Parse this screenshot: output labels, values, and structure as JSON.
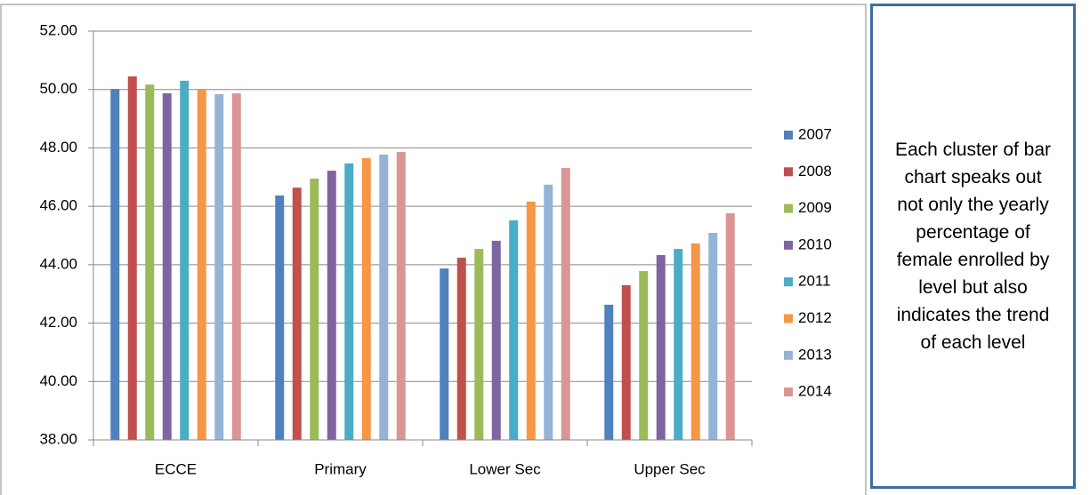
{
  "chart_data": {
    "type": "bar",
    "categories": [
      "ECCE",
      "Primary",
      "Lower Sec",
      "Upper Sec"
    ],
    "series": [
      {
        "name": "2007",
        "color": "#4f81bd",
        "values": [
          50.02,
          46.37,
          43.87,
          42.63
        ]
      },
      {
        "name": "2008",
        "color": "#c0504d",
        "values": [
          50.45,
          46.64,
          44.24,
          43.3
        ]
      },
      {
        "name": "2009",
        "color": "#9bbb59",
        "values": [
          50.17,
          46.95,
          44.54,
          43.78
        ]
      },
      {
        "name": "2010",
        "color": "#8064a2",
        "values": [
          49.87,
          47.22,
          44.82,
          44.33
        ]
      },
      {
        "name": "2011",
        "color": "#4bacc6",
        "values": [
          50.3,
          47.47,
          45.52,
          44.54
        ]
      },
      {
        "name": "2012",
        "color": "#f79646",
        "values": [
          49.99,
          47.65,
          46.16,
          44.73
        ]
      },
      {
        "name": "2013",
        "color": "#95b3d7",
        "values": [
          49.84,
          47.77,
          46.74,
          45.09
        ]
      },
      {
        "name": "2014",
        "color": "#d99694",
        "values": [
          49.87,
          47.86,
          47.31,
          45.76
        ]
      }
    ],
    "ylim": [
      38,
      52
    ],
    "yticks": [
      {
        "value": 38,
        "label": "38.00"
      },
      {
        "value": 40,
        "label": "40.00"
      },
      {
        "value": 42,
        "label": "42.00"
      },
      {
        "value": 44,
        "label": "44.00"
      },
      {
        "value": 46,
        "label": "46.00"
      },
      {
        "value": 48,
        "label": "48.00"
      },
      {
        "value": 50,
        "label": "50.00"
      },
      {
        "value": 52,
        "label": "52.00"
      }
    ],
    "grid": true,
    "legend": "right"
  },
  "note": "Each cluster of bar chart speaks out not only the yearly percentage of female enrolled by level but also indicates the trend of each level"
}
